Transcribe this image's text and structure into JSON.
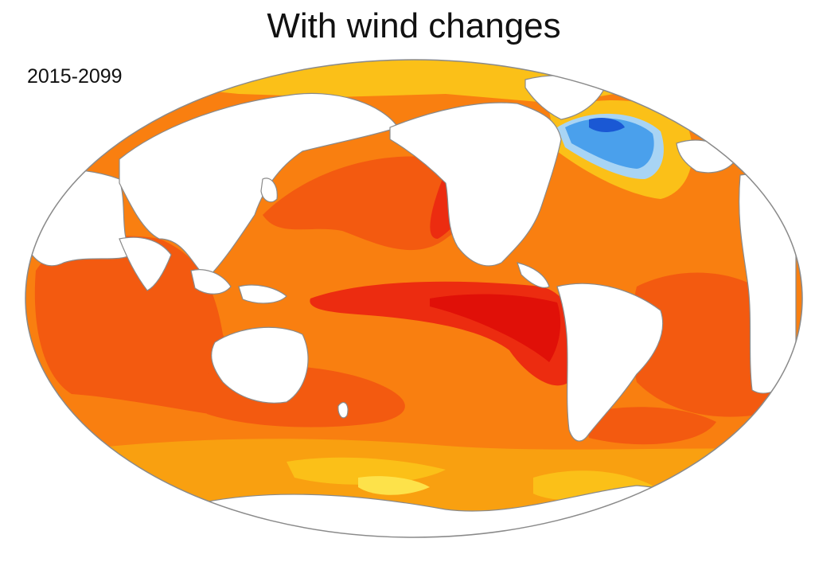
{
  "title": "With wind changes",
  "period": "2015-2099",
  "map": {
    "projection": "robinson",
    "center": "pacific-centered",
    "colors": {
      "ocean_base": "#f97f10",
      "warm": "#f35a10",
      "hot": "#ec2c10",
      "very_hot": "#e01008",
      "mild": "#f9a010",
      "cool": "#fbc018",
      "cooler": "#fde24a",
      "cold_light": "#a8d4f4",
      "cold": "#4aa0ec",
      "cold_dark": "#1a58d4",
      "land": "#ffffff",
      "coast": "#8a8a8a"
    }
  }
}
